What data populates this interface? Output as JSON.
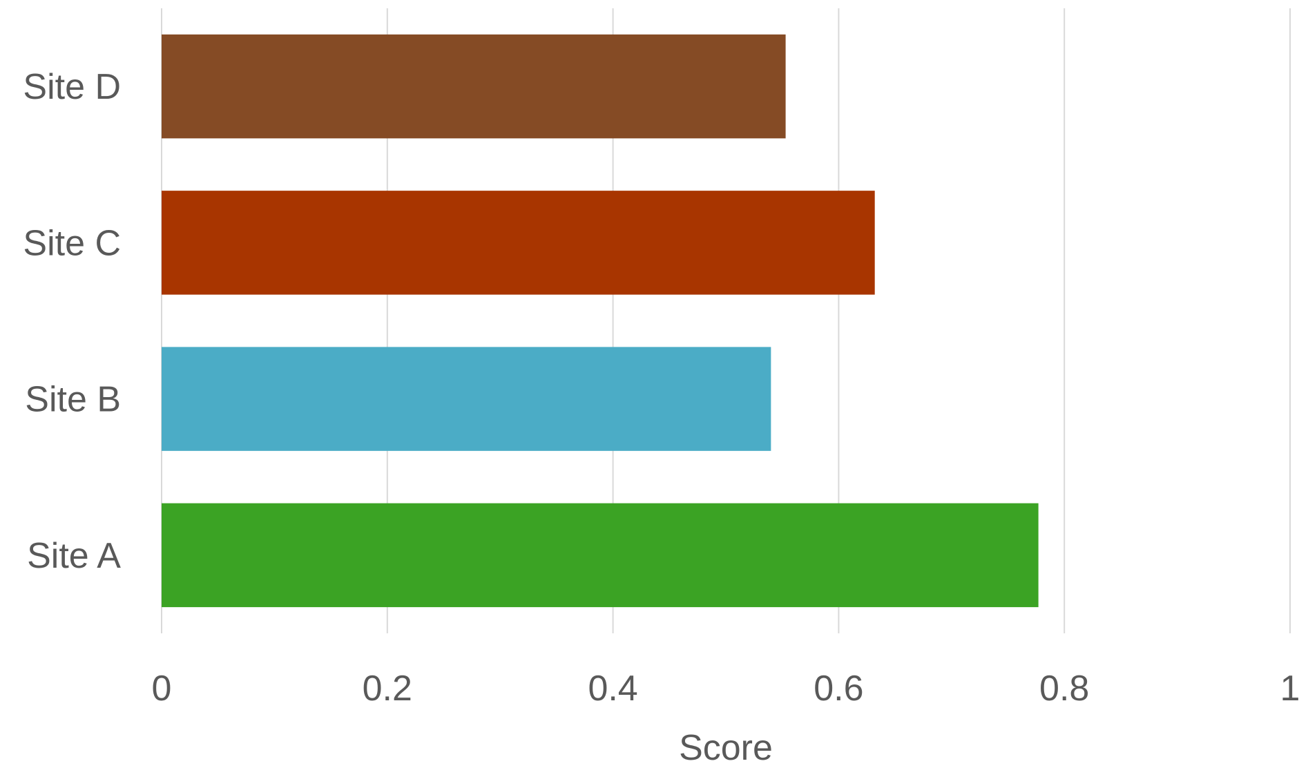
{
  "chart_data": {
    "type": "bar",
    "orientation": "horizontal",
    "categories": [
      "Site D",
      "Site C",
      "Site B",
      "Site A"
    ],
    "values": [
      0.553,
      0.632,
      0.54,
      0.777
    ],
    "colors": [
      "#854B25",
      "#A83500",
      "#4BACC6",
      "#3BA324"
    ],
    "xlabel": "Score",
    "ylabel": "",
    "title": "",
    "xlim": [
      0,
      1
    ],
    "xticks": [
      "0",
      "0.2",
      "0.4",
      "0.6",
      "0.8",
      "1"
    ],
    "grid": true,
    "legend": "none"
  }
}
